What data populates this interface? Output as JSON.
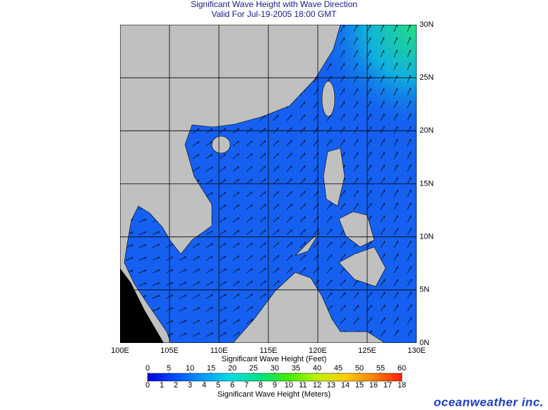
{
  "header": {
    "title": "Significant Wave Height with Wave Direction",
    "subtitle": "Valid For Jul-19-2005 18:00 GMT"
  },
  "map": {
    "lon_range": [
      100,
      130
    ],
    "lat_range": [
      0,
      30
    ],
    "lon_ticks": [
      {
        "value": 100,
        "label": "100E"
      },
      {
        "value": 105,
        "label": "105E"
      },
      {
        "value": 110,
        "label": "110E"
      },
      {
        "value": 115,
        "label": "115E"
      },
      {
        "value": 120,
        "label": "120E"
      },
      {
        "value": 125,
        "label": "125E"
      },
      {
        "value": 130,
        "label": "130E"
      }
    ],
    "lat_ticks": [
      {
        "value": 0,
        "label": "0N"
      },
      {
        "value": 5,
        "label": "5N"
      },
      {
        "value": 10,
        "label": "10N"
      },
      {
        "value": 15,
        "label": "15N"
      },
      {
        "value": 20,
        "label": "20N"
      },
      {
        "value": 25,
        "label": "25N"
      },
      {
        "value": 30,
        "label": "30N"
      }
    ],
    "grid": true
  },
  "colorbar": {
    "feet_title": "Significant Wave Height (Feet)",
    "meters_title": "Significant Wave Height (Meters)",
    "feet_range": [
      0,
      60
    ],
    "feet_ticks": [
      0,
      5,
      10,
      15,
      20,
      25,
      30,
      35,
      40,
      45,
      50,
      55,
      60
    ],
    "meters_range": [
      0,
      18
    ],
    "meters_ticks": [
      0,
      1,
      2,
      3,
      4,
      5,
      6,
      7,
      8,
      9,
      10,
      11,
      12,
      13,
      14,
      15,
      16,
      17,
      18
    ],
    "colors": [
      "#0000e0",
      "#0050ff",
      "#00a0ff",
      "#00e0e0",
      "#00e080",
      "#40f000",
      "#c0f000",
      "#ffd000",
      "#ff8000",
      "#ff2000"
    ]
  },
  "footer": {
    "logo": "oceanweather inc."
  }
}
